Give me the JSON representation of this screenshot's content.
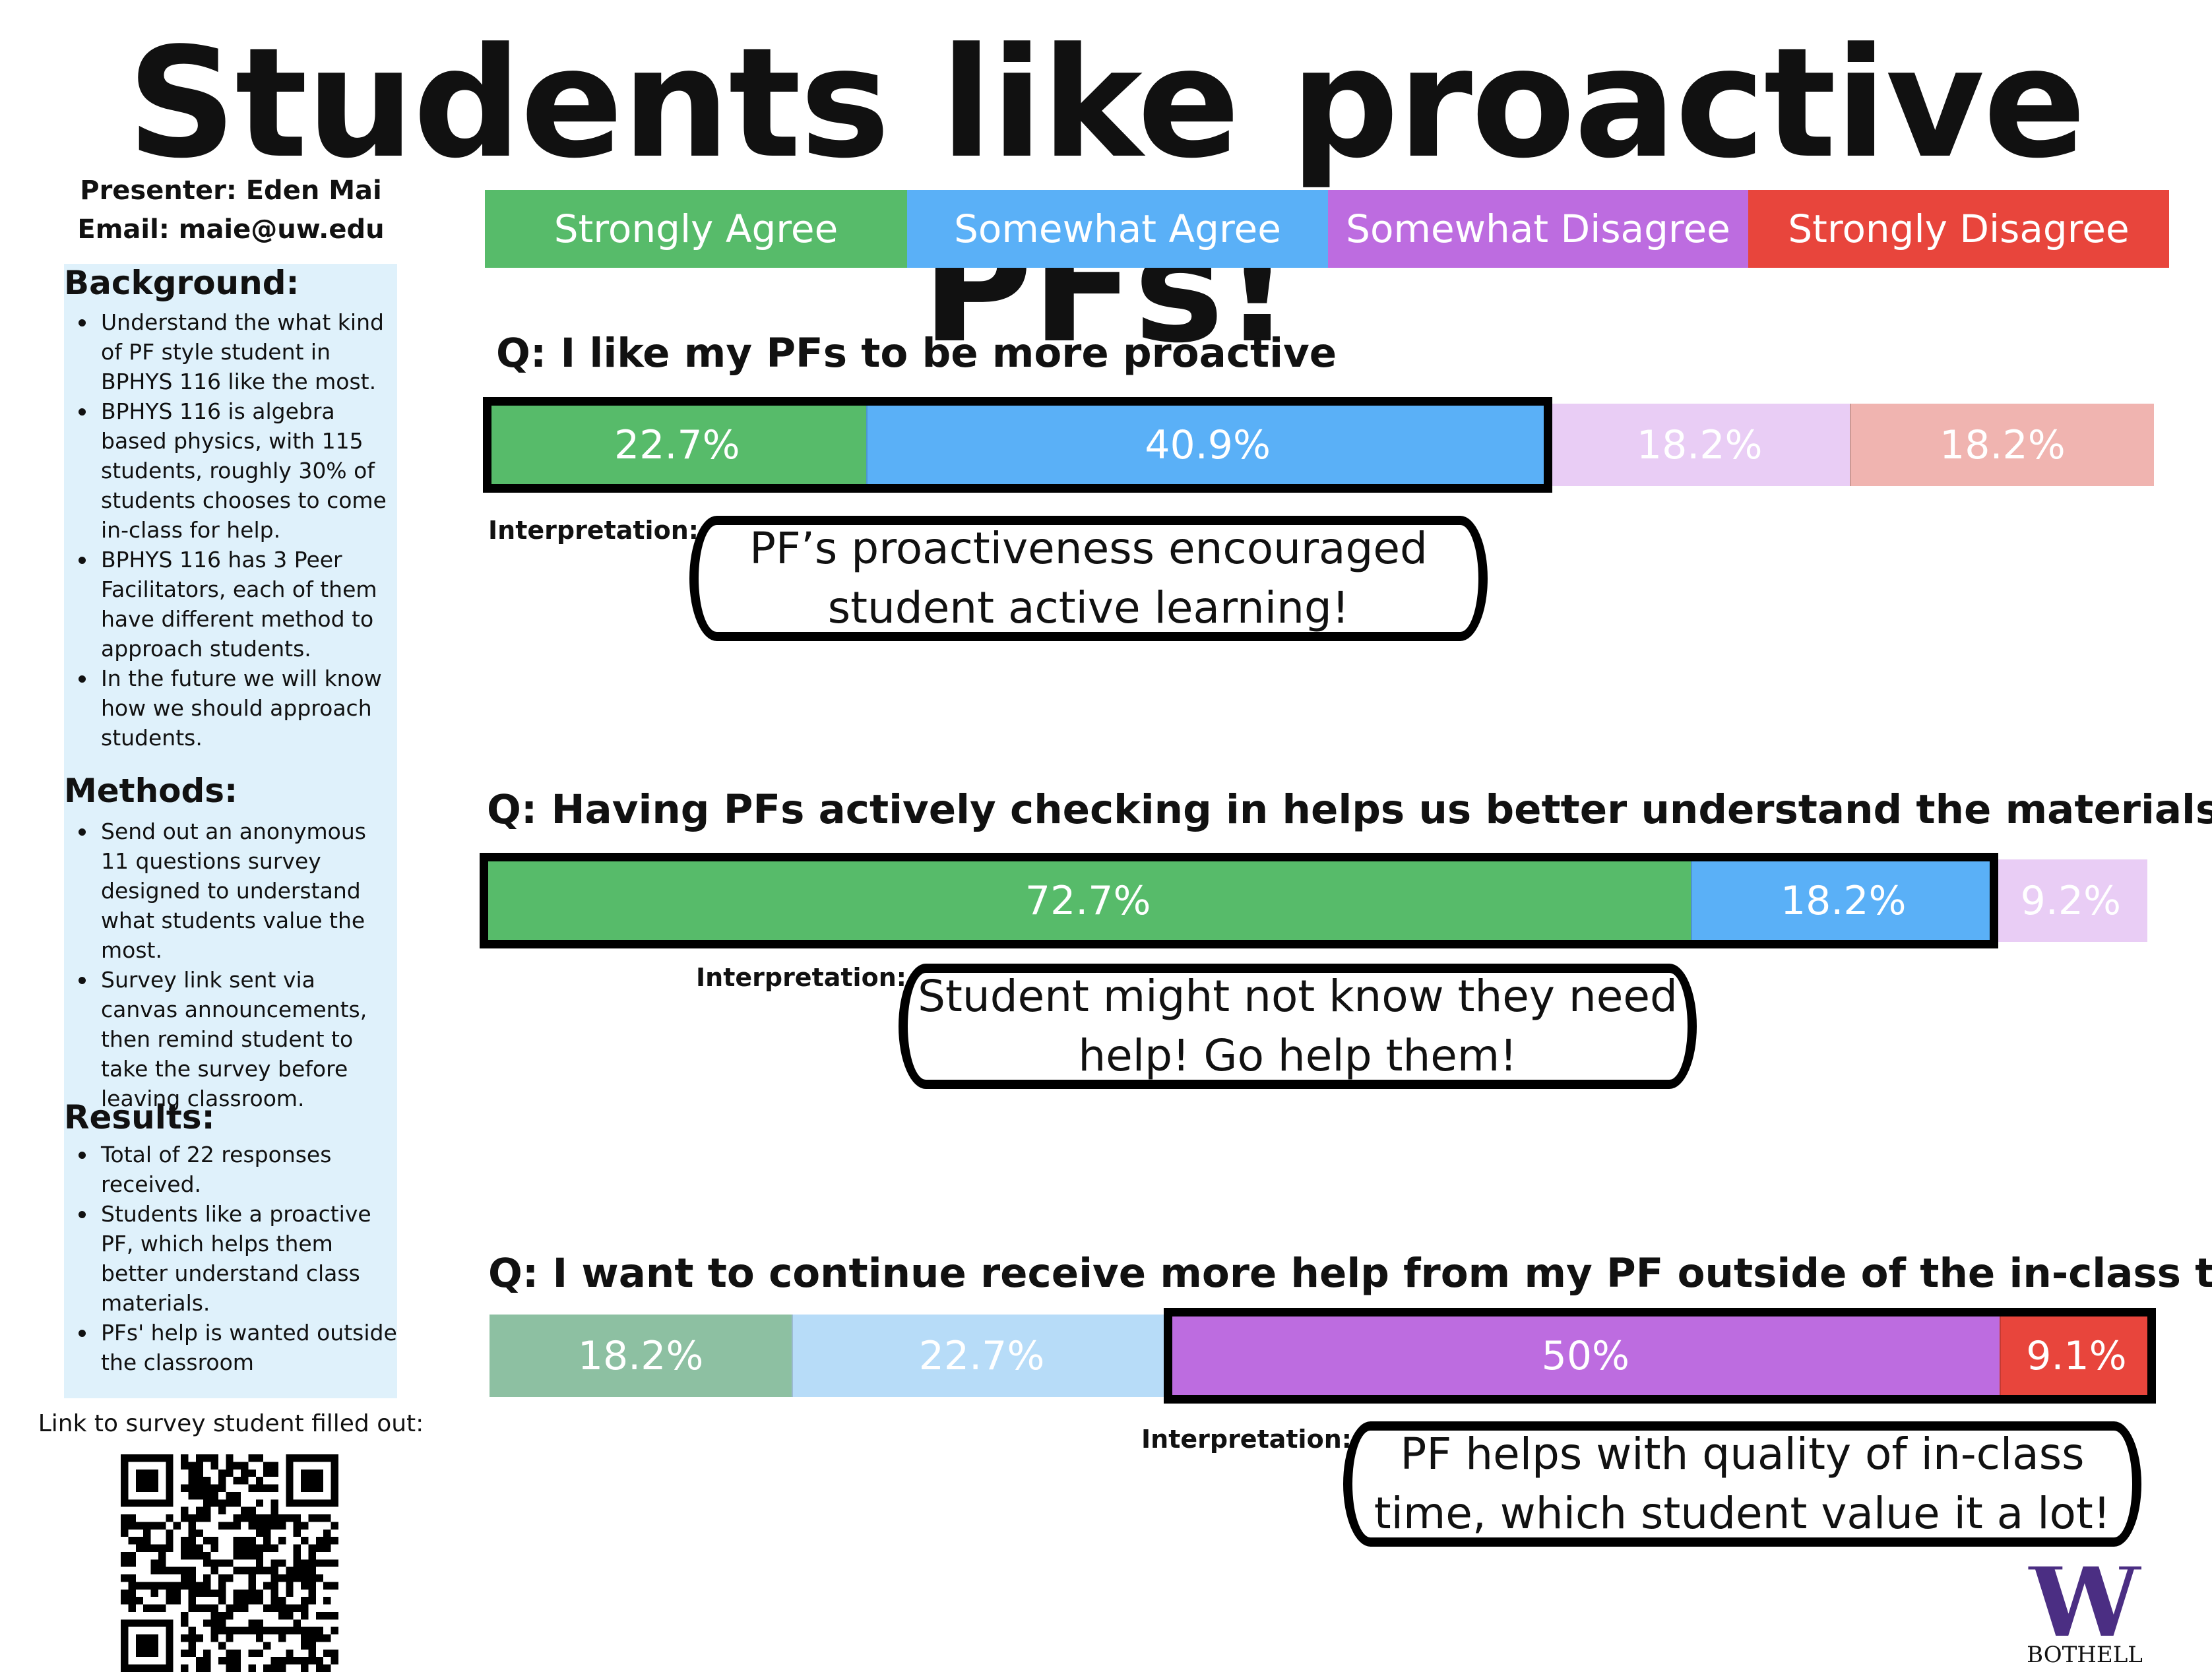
{
  "title": "Students like proactive PFs!",
  "presenter": "Presenter: Eden Mai",
  "email": "Email: maie@uw.edu",
  "sidebar": {
    "background": {
      "heading": "Background:",
      "items": [
        "Understand the what kind of PF style student in BPHYS 116 like the most.",
        "BPHYS 116 is algebra based physics, with 115 students, roughly 30% of students chooses to come in-class for help.",
        "BPHYS 116 has 3 Peer Facilitators, each of them have different method to approach students.",
        "In the future we will know how we should approach students."
      ]
    },
    "methods": {
      "heading": "Methods:",
      "items": [
        "Send out an anonymous 11 questions survey designed to understand what students value the most.",
        "Survey link sent via canvas announcements, then remind student to take the survey before leaving classroom."
      ]
    },
    "results": {
      "heading": "Results:",
      "items": [
        "Total of 22 responses received.",
        "Students like a proactive PF, which helps them better understand class materials.",
        "PFs' help is wanted outside the classroom"
      ]
    }
  },
  "link_label": "Link to survey student filled out:",
  "interpretation_label": "Interpretation:",
  "logo": {
    "letter": "W",
    "text": "BOTHELL",
    "color": "#4b2e83"
  },
  "chart_data": {
    "type": "bar",
    "orientation": "horizontal-stacked",
    "unit": "%",
    "legend": [
      {
        "name": "Strongly Agree",
        "color": "#57bb6a"
      },
      {
        "name": "Somewhat Agree",
        "color": "#5ab0f7"
      },
      {
        "name": "Somewhat Disagree",
        "color": "#bd6ce0"
      },
      {
        "name": "Strongly Disagree",
        "color": "#e8453c"
      }
    ],
    "questions": [
      {
        "question": "Q: I like my PFs to be more proactive",
        "values": [
          22.7,
          40.9,
          18.2,
          18.2
        ],
        "labels": [
          "22.7%",
          "40.9%",
          "18.2%",
          "18.2%"
        ],
        "colors": [
          "#57bb6a",
          "#5ab0f7",
          "#e9cdf5",
          "#f0b4b0"
        ],
        "highlight": [
          0,
          1
        ],
        "interpretation": "PF’s proactiveness encouraged student active learning!"
      },
      {
        "question": "Q: Having PFs actively checking in helps us better understand the materials",
        "values": [
          72.7,
          18.2,
          9.2
        ],
        "labels": [
          "72.7%",
          "18.2%",
          "9.2%"
        ],
        "colors": [
          "#57bb6a",
          "#5ab0f7",
          "#e9cdf5"
        ],
        "highlight": [
          0,
          1
        ],
        "interpretation": "Student might not know they need help! Go help them!"
      },
      {
        "question": "Q: I want to continue receive more help from my PF outside of the in-class time",
        "values": [
          18.2,
          22.7,
          50,
          9.1
        ],
        "labels": [
          "18.2%",
          "22.7%",
          "50%",
          "9.1%"
        ],
        "colors": [
          "#8dc0a2",
          "#b7dcf8",
          "#bd6ce0",
          "#e8453c"
        ],
        "highlight": [
          2,
          3
        ],
        "interpretation": "PF helps with quality of in-class time, which student value it a lot!"
      }
    ]
  }
}
